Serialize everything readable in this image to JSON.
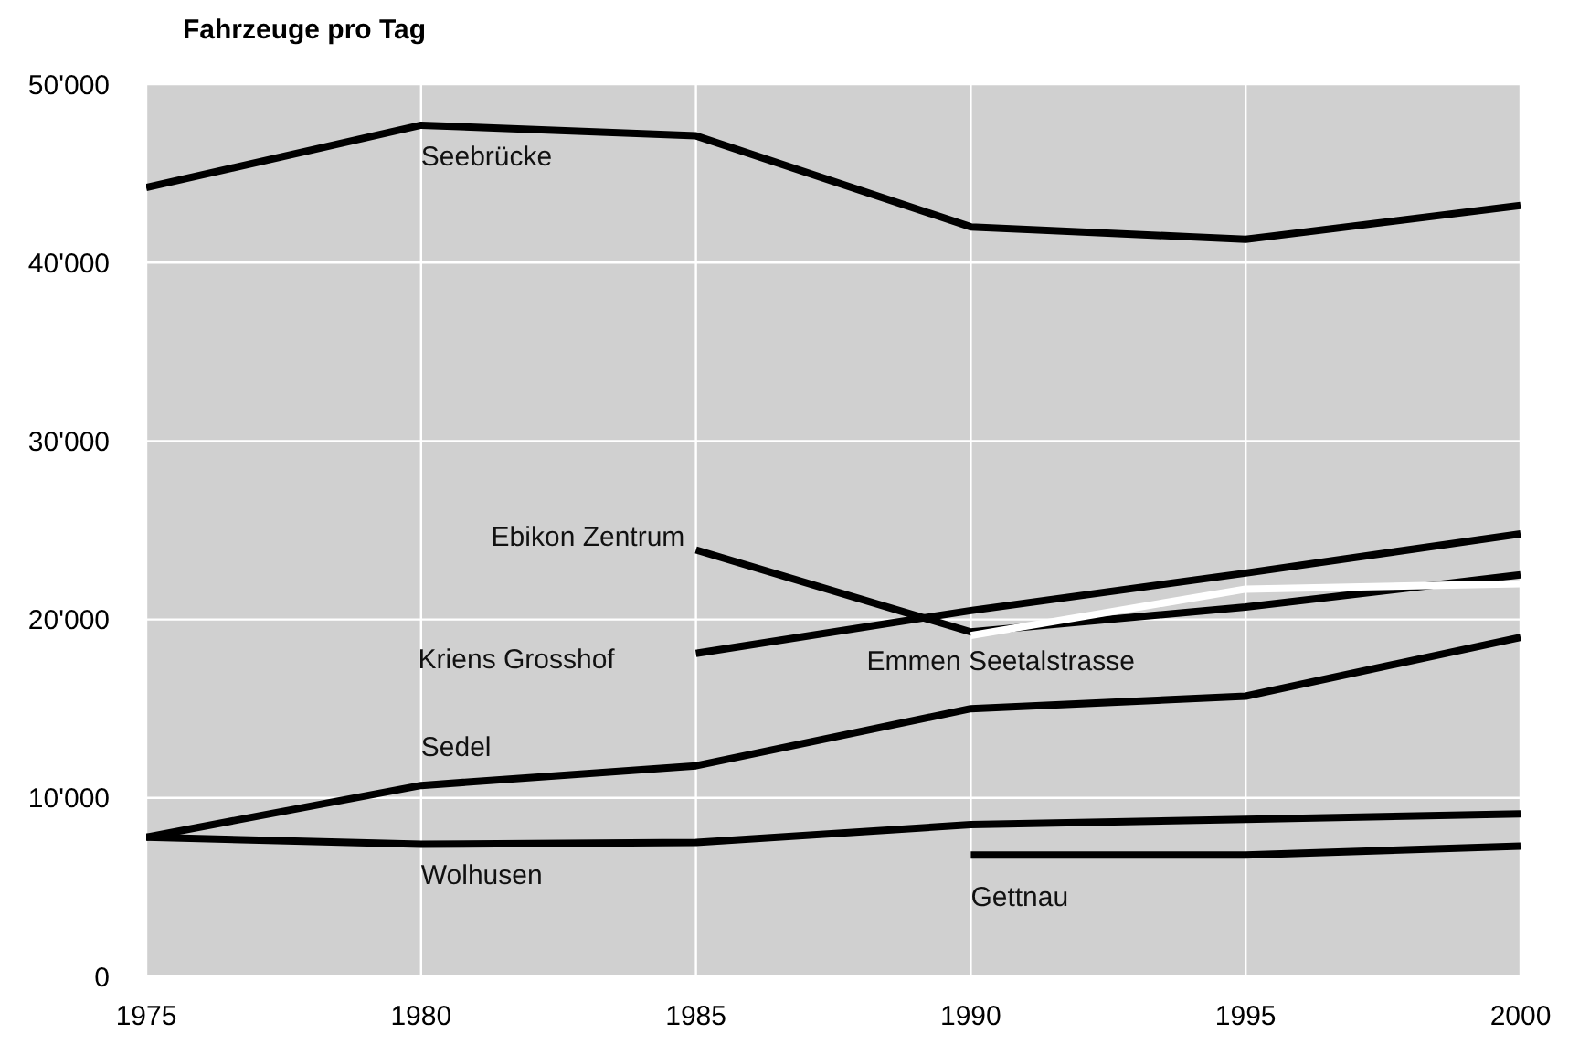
{
  "chart_data": {
    "type": "line",
    "ylabel": "Fahrzeuge pro Tag",
    "xlim": [
      1975,
      2000
    ],
    "xticks": [
      1975,
      1980,
      1985,
      1990,
      1995,
      2000
    ],
    "ylim": [
      0,
      50000
    ],
    "yticks": [
      {
        "value": 0,
        "label": "0"
      },
      {
        "value": 10000,
        "label": "10'000"
      },
      {
        "value": 20000,
        "label": "20'000"
      },
      {
        "value": 30000,
        "label": "30'000"
      },
      {
        "value": 40000,
        "label": "40'000"
      },
      {
        "value": 50000,
        "label": "50'000"
      }
    ],
    "grid": true,
    "legend": false,
    "marker": "none",
    "line_style": "solid",
    "series": [
      {
        "name": "Seebrücke",
        "color": "#000000",
        "x": [
          1975,
          1980,
          1985,
          1990,
          1995,
          2000
        ],
        "values": [
          44200,
          47700,
          47100,
          42000,
          41300,
          43200
        ]
      },
      {
        "name": "Ebikon Zentrum",
        "color": "#000000",
        "x": [
          1985,
          1990,
          1995,
          2000
        ],
        "values": [
          23900,
          19300,
          20700,
          22500
        ]
      },
      {
        "name": "Kriens Grosshof",
        "color": "#000000",
        "x": [
          1985,
          1990,
          1995,
          2000
        ],
        "values": [
          18100,
          20500,
          22600,
          24800
        ]
      },
      {
        "name": "Emmen Seetalstrasse",
        "color": "#ffffff",
        "x": [
          1990,
          1995,
          2000
        ],
        "values": [
          19100,
          21700,
          22000
        ]
      },
      {
        "name": "Sedel",
        "color": "#000000",
        "x": [
          1975,
          1980,
          1985,
          1990,
          1995,
          2000
        ],
        "values": [
          7800,
          10700,
          11800,
          15000,
          15700,
          19000
        ]
      },
      {
        "name": "Wolhusen",
        "color": "#000000",
        "x": [
          1975,
          1980,
          1985,
          1990,
          1995,
          2000
        ],
        "values": [
          7800,
          7400,
          7500,
          8500,
          8800,
          9100
        ]
      },
      {
        "name": "Gettnau",
        "color": "#000000",
        "x": [
          1990,
          1995,
          2000
        ],
        "values": [
          6800,
          6800,
          7300
        ]
      }
    ]
  }
}
